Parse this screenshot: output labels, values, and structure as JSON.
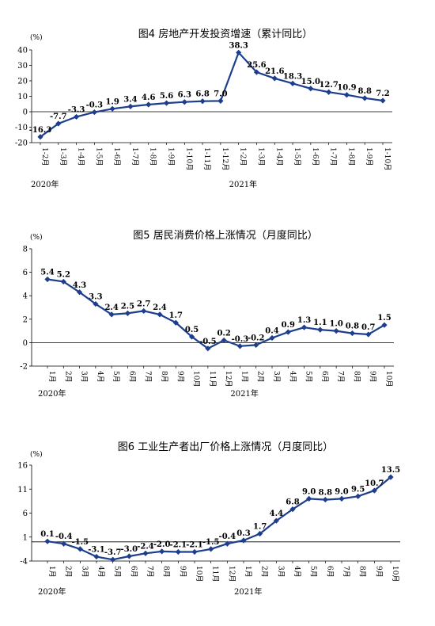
{
  "chart_data": [
    {
      "type": "line",
      "title": "图4   房地产开发投资增速（累计同比）",
      "unit": "(%)",
      "ylim": [
        -20,
        40
      ],
      "yticks": [
        -20,
        -10,
        0,
        10,
        20,
        30,
        40
      ],
      "categories": [
        "1-2月",
        "1-3月",
        "1-4月",
        "1-5月",
        "1-6月",
        "1-7月",
        "1-8月",
        "1-9月",
        "1-10月",
        "1-11月",
        "1-12月",
        "1-2月",
        "1-3月",
        "1-4月",
        "1-5月",
        "1-6月",
        "1-7月",
        "1-8月",
        "1-9月",
        "1-10月"
      ],
      "values": [
        -16.3,
        -7.7,
        -3.3,
        -0.3,
        1.9,
        3.4,
        4.6,
        5.6,
        6.3,
        6.8,
        7.0,
        38.3,
        25.6,
        21.6,
        18.3,
        15.0,
        12.7,
        10.9,
        8.8,
        7.2
      ],
      "value_labels": [
        "-16.3",
        "-7.7",
        "-3.3",
        "-0.3",
        "1.9",
        "3.4",
        "4.6",
        "5.6",
        "6.3",
        "6.8",
        "7.0",
        "38.3",
        "25.6",
        "21.6",
        "18.3",
        "15.0",
        "12.7",
        "10.9",
        "8.8",
        "7.2"
      ],
      "years": [
        {
          "label": "2020年",
          "start_index": 0
        },
        {
          "label": "2021年",
          "start_index": 11
        }
      ],
      "line_color": "#1c3e8c"
    },
    {
      "type": "line",
      "title": "图5   居民消费价格上涨情况（月度同比）",
      "unit": "(%)",
      "ylim": [
        -2,
        8
      ],
      "yticks": [
        -2,
        0,
        2,
        4,
        6,
        8
      ],
      "categories": [
        "1月",
        "2月",
        "3月",
        "4月",
        "5月",
        "6月",
        "7月",
        "8月",
        "9月",
        "10月",
        "11月",
        "12月",
        "1月",
        "2月",
        "3月",
        "4月",
        "5月",
        "6月",
        "7月",
        "8月",
        "9月",
        "10月"
      ],
      "values": [
        5.4,
        5.2,
        4.3,
        3.3,
        2.4,
        2.5,
        2.7,
        2.4,
        1.7,
        0.5,
        -0.5,
        0.2,
        -0.3,
        -0.2,
        0.4,
        0.9,
        1.3,
        1.1,
        1.0,
        0.8,
        0.7,
        1.5
      ],
      "value_labels": [
        "5.4",
        "5.2",
        "4.3",
        "3.3",
        "2.4",
        "2.5",
        "2.7",
        "2.4",
        "1.7",
        "0.5",
        "-0.5",
        "0.2",
        "-0.3",
        "-0.2",
        "0.4",
        "0.9",
        "1.3",
        "1.1",
        "1.0",
        "0.8",
        "0.7",
        "1.5"
      ],
      "years": [
        {
          "label": "2020年",
          "start_index": 0
        },
        {
          "label": "2021年",
          "start_index": 12
        }
      ],
      "line_color": "#1c3e8c"
    },
    {
      "type": "line",
      "title": "图6   工业生产者出厂价格上涨情况（月度同比）",
      "unit": "(%)",
      "ylim": [
        -4,
        16
      ],
      "yticks": [
        -4,
        1,
        6,
        11,
        16
      ],
      "categories": [
        "1月",
        "2月",
        "3月",
        "4月",
        "5月",
        "6月",
        "7月",
        "8月",
        "9月",
        "10月",
        "11月",
        "12月",
        "1月",
        "2月",
        "3月",
        "4月",
        "5月",
        "6月",
        "7月",
        "8月",
        "9月",
        "10月"
      ],
      "values": [
        0.1,
        -0.4,
        -1.5,
        -3.1,
        -3.7,
        -3.0,
        -2.4,
        -2.0,
        -2.1,
        -2.1,
        -1.5,
        -0.4,
        0.3,
        1.7,
        4.4,
        6.8,
        9.0,
        8.8,
        9.0,
        9.5,
        10.7,
        13.5
      ],
      "value_labels": [
        "0.1",
        "-0.4",
        "-1.5",
        "-3.1",
        "-3.7",
        "-3.0",
        "-2.4",
        "-2.0",
        "-2.1",
        "-2.1",
        "-1.5",
        "-0.4",
        "0.3",
        "1.7",
        "4.4",
        "6.8",
        "9.0",
        "8.8",
        "9.0",
        "9.5",
        "10.7",
        "13.5"
      ],
      "years": [
        {
          "label": "2020年",
          "start_index": 0
        },
        {
          "label": "2021年",
          "start_index": 12
        }
      ],
      "line_color": "#1c3e8c"
    }
  ]
}
